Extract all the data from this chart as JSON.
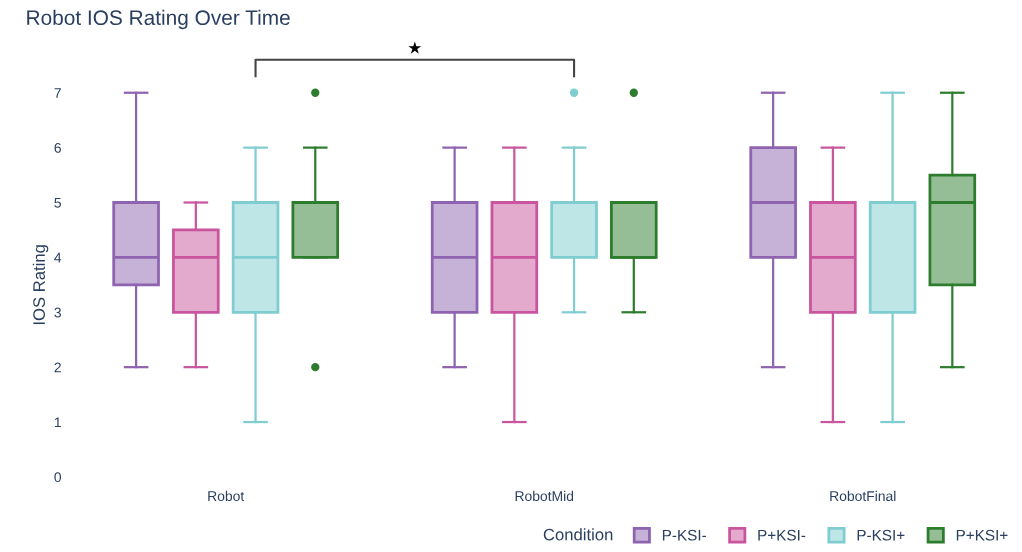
{
  "chart_data": {
    "type": "box",
    "title": "Robot IOS Rating Over Time",
    "ylabel": "IOS Rating",
    "legend_title": "Condition",
    "legend": "bottom right",
    "grid": false,
    "categories": [
      "Robot",
      "RobotMid",
      "RobotFinal"
    ],
    "ylim": [
      0,
      7
    ],
    "yticks": [
      0,
      1,
      2,
      3,
      4,
      5,
      6,
      7
    ],
    "annotations": [
      "★"
    ],
    "series": [
      {
        "name": "P-KSI-",
        "color": "#8e63b0",
        "boxes": [
          {
            "low": 2,
            "q1": 3.5,
            "median": 4,
            "q3": 5,
            "high": 7
          },
          {
            "low": 2,
            "q1": 3,
            "median": 4,
            "q3": 5,
            "high": 6
          },
          {
            "low": 2,
            "q1": 4,
            "median": 5,
            "q3": 6,
            "high": 7
          }
        ]
      },
      {
        "name": "P+KSI-",
        "color": "#c9559e",
        "boxes": [
          {
            "low": 2,
            "q1": 3,
            "median": 4,
            "q3": 4.5,
            "high": 5
          },
          {
            "low": 1,
            "q1": 3,
            "median": 4,
            "q3": 5,
            "high": 6
          },
          {
            "low": 1,
            "q1": 3,
            "median": 4,
            "q3": 5,
            "high": 6
          }
        ]
      },
      {
        "name": "P-KSI+",
        "color": "#7fcdd0",
        "boxes": [
          {
            "low": 1,
            "q1": 3,
            "median": 4,
            "q3": 5,
            "high": 6
          },
          {
            "low": 3,
            "q1": 4,
            "median": 5,
            "q3": 5,
            "high": 6,
            "outliers": [
              7
            ]
          },
          {
            "low": 1,
            "q1": 3,
            "median": 5,
            "q3": 5,
            "high": 7
          }
        ]
      },
      {
        "name": "P+KSI+",
        "color": "#2e7d2e",
        "boxes": [
          {
            "low": 4,
            "q1": 4,
            "median": 5,
            "q3": 5,
            "high": 6,
            "outliers": [
              7,
              2
            ]
          },
          {
            "low": 3,
            "q1": 4,
            "median": 4,
            "q3": 5,
            "high": 5,
            "outliers": [
              7
            ]
          },
          {
            "low": 2,
            "q1": 3.5,
            "median": 5,
            "q3": 5.5,
            "high": 7
          }
        ]
      }
    ]
  }
}
